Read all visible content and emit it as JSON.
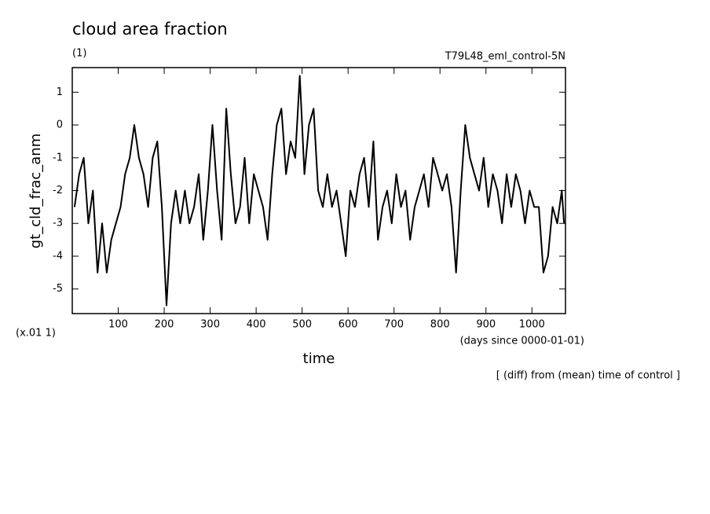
{
  "chart_data": {
    "type": "line",
    "title": "cloud area fraction",
    "subtitle": "(1)",
    "run_label": "T79L48_eml_control-5N",
    "y_label": "gt_cld_frac_anm",
    "y_unit_label": "(x.01 1)",
    "x_label": "time",
    "x_unit_label": "(days since 0000-01-01)",
    "annotation": "[ (diff) from (mean) time of control ]",
    "xlim": [
      0,
      1073
    ],
    "ylim": [
      -5.75,
      1.75
    ],
    "xticks": [
      100,
      200,
      300,
      400,
      500,
      600,
      700,
      800,
      900,
      1000
    ],
    "yticks": [
      1,
      0,
      -1,
      -2,
      -3,
      -4,
      -5
    ],
    "color": "#000000",
    "x": [
      5,
      15,
      25,
      35,
      45,
      55,
      65,
      75,
      85,
      95,
      105,
      115,
      125,
      135,
      145,
      155,
      165,
      175,
      185,
      195,
      205,
      215,
      225,
      235,
      245,
      255,
      265,
      275,
      285,
      295,
      305,
      315,
      325,
      335,
      345,
      355,
      365,
      375,
      385,
      395,
      405,
      415,
      425,
      435,
      445,
      455,
      465,
      475,
      485,
      495,
      505,
      515,
      525,
      535,
      545,
      555,
      565,
      575,
      585,
      595,
      605,
      615,
      625,
      635,
      645,
      655,
      665,
      675,
      685,
      695,
      705,
      715,
      725,
      735,
      745,
      755,
      765,
      775,
      785,
      795,
      805,
      815,
      825,
      835,
      845,
      855,
      865,
      875,
      885,
      895,
      905,
      915,
      925,
      935,
      945,
      955,
      965,
      975,
      985,
      995,
      1005,
      1015,
      1025,
      1035,
      1045,
      1055,
      1065,
      1070
    ],
    "values": [
      -2.5,
      -1.5,
      -1,
      -3,
      -2,
      -4.5,
      -3,
      -4.5,
      -3.5,
      -3,
      -2.5,
      -1.5,
      -1,
      0,
      -1,
      -1.5,
      -2.5,
      -1,
      -0.5,
      -2.5,
      -5.5,
      -3,
      -2,
      -3,
      -2,
      -3,
      -2.5,
      -1.5,
      -3.5,
      -2,
      0,
      -2,
      -3.5,
      0.5,
      -1.5,
      -3,
      -2.5,
      -1,
      -3,
      -1.5,
      -2,
      -2.5,
      -3.5,
      -1.5,
      0,
      0.5,
      -1.5,
      -0.5,
      -1,
      1.5,
      -1.5,
      0,
      0.5,
      -2,
      -2.5,
      -1.5,
      -2.5,
      -2,
      -3,
      -4,
      -2,
      -2.5,
      -1.5,
      -1,
      -2.5,
      -0.5,
      -3.5,
      -2.5,
      -2,
      -3,
      -1.5,
      -2.5,
      -2,
      -3.5,
      -2.5,
      -2,
      -1.5,
      -2.5,
      -1,
      -1.5,
      -2,
      -1.5,
      -2.5,
      -4.5,
      -2,
      0,
      -1,
      -1.5,
      -2,
      -1,
      -2.5,
      -1.5,
      -2,
      -3,
      -1.5,
      -2.5,
      -1.5,
      -2,
      -3,
      -2,
      -2.5,
      -2.5,
      -4.5,
      -4,
      -2.5,
      -3,
      -2,
      -3
    ]
  }
}
